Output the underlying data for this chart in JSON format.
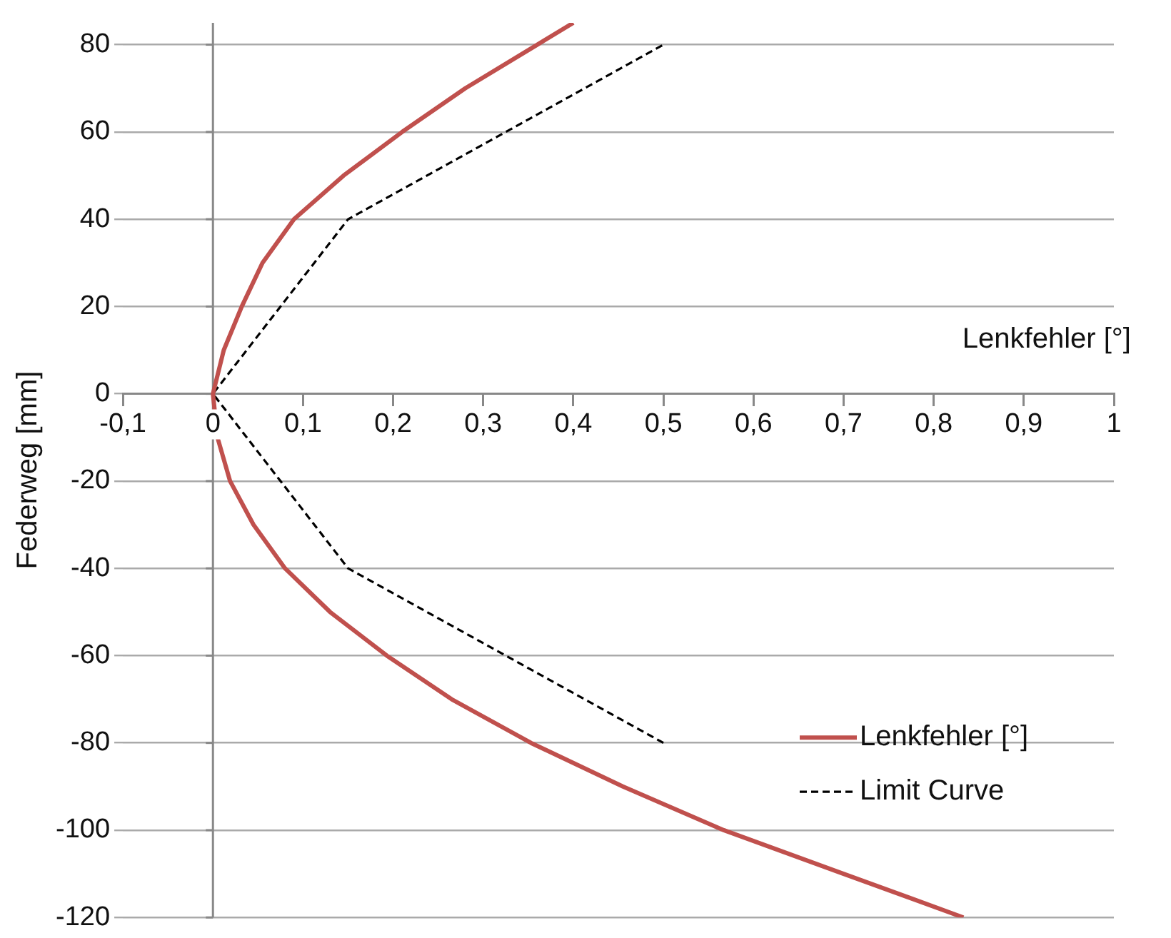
{
  "chart_data": {
    "type": "line",
    "xlabel": "Lenkfehler [°]",
    "ylabel": "Federweg [mm]",
    "xlim": [
      -0.1,
      1
    ],
    "xticks": [
      {
        "value": -0.1,
        "label": "-0,1"
      },
      0,
      {
        "value": 0.1,
        "label": "0,1"
      },
      {
        "value": 0.2,
        "label": "0,2"
      },
      {
        "value": 0.3,
        "label": "0,3"
      },
      {
        "value": 0.4,
        "label": "0,4"
      },
      {
        "value": 0.5,
        "label": "0,5"
      },
      {
        "value": 0.6,
        "label": "0,6"
      },
      {
        "value": 0.7,
        "label": "0,7"
      },
      {
        "value": 0.8,
        "label": "0,8"
      },
      {
        "value": 0.9,
        "label": "0,9"
      },
      1
    ],
    "ylim": [
      -120,
      85
    ],
    "yticks": [
      -120,
      -100,
      -80,
      -60,
      -40,
      -20,
      0,
      20,
      40,
      60,
      80
    ],
    "grid": "y",
    "legend": "bottom right",
    "marker": "none",
    "series": [
      {
        "name": "Lenkfehler [°]",
        "color": "#c0504d",
        "line_style": "solid",
        "x": [
          0.833,
          0.7,
          0.567,
          0.455,
          0.353,
          0.265,
          0.193,
          0.13,
          0.08,
          0.045,
          0.019,
          0.005,
          0,
          0.012,
          0.032,
          0.055,
          0.09,
          0.145,
          0.21,
          0.28,
          0.36,
          0.4
        ],
        "values": [
          -120,
          -110,
          -100,
          -90,
          -80,
          -70,
          -60,
          -50,
          -40,
          -30,
          -20,
          -10,
          0,
          10,
          20,
          30,
          40,
          50,
          60,
          70,
          80,
          85
        ]
      },
      {
        "name": "Limit Curve",
        "color": "#000000",
        "line_style": "dashed",
        "x": [
          0.5,
          0.15,
          0,
          0.15,
          0.5
        ],
        "values": [
          -80,
          -40,
          0,
          40,
          80
        ]
      }
    ]
  }
}
